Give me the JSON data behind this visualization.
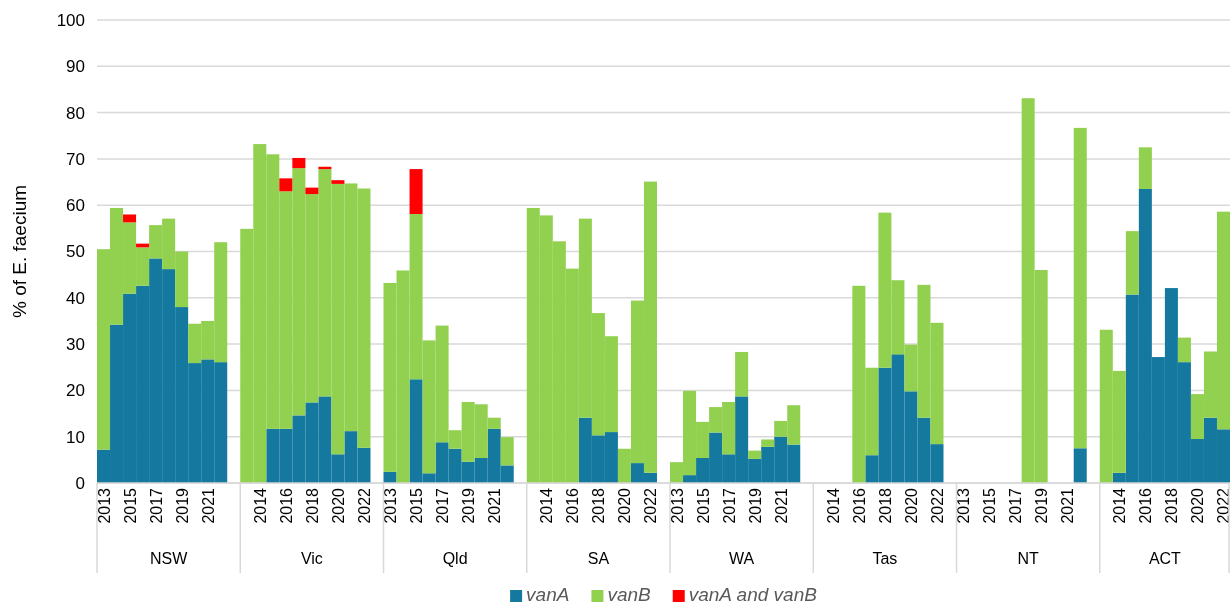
{
  "chart_data": {
    "type": "bar",
    "stacked": true,
    "ylabel": "% of E. faecium",
    "categories": [
      "2013",
      null,
      "2015",
      null,
      "2017",
      null,
      "2019",
      null,
      "2021",
      null,
      null,
      null,
      "2014",
      null,
      "2016",
      null,
      "2018",
      null,
      "2020",
      null,
      "2022",
      null,
      "2013",
      null,
      "2015",
      null,
      "2017",
      null,
      "2019",
      null,
      "2021",
      null,
      null,
      null,
      "2014",
      null,
      "2016",
      null,
      "2018",
      null,
      "2020",
      null,
      "2022",
      null,
      "2013",
      null,
      "2015",
      null,
      "2017",
      null,
      "2019",
      null,
      "2021",
      null,
      null,
      null,
      "2014",
      null,
      "2016",
      null,
      "2018",
      null,
      "2020",
      null,
      "2022",
      null,
      "2013",
      null,
      "2015",
      null,
      "2017",
      null,
      "2019",
      null,
      "2021",
      null,
      null,
      null,
      "2014",
      null,
      "2016",
      null,
      "2018",
      null,
      "2020",
      null,
      "2022"
    ],
    "annotations": [
      "NSW",
      "Vic",
      "Qld",
      "SA",
      "WA",
      "Tas",
      "NT",
      "ACT"
    ],
    "series": [
      {
        "name": "vanA",
        "color": "#15799f",
        "values": [
          7.2,
          34.2,
          40.9,
          42.6,
          48.5,
          46.2,
          38.0,
          25.9,
          26.7,
          26.1,
          null,
          0,
          0,
          11.7,
          11.7,
          14.6,
          17.4,
          18.7,
          6.2,
          11.2,
          7.6,
          null,
          2.4,
          0,
          22.4,
          2.1,
          8.8,
          7.4,
          4.6,
          5.4,
          11.7,
          3.8,
          null,
          0,
          0,
          0,
          0,
          14.1,
          10.3,
          11.0,
          0,
          4.3,
          2.2,
          null,
          0,
          1.7,
          5.4,
          10.9,
          6.2,
          18.7,
          5.2,
          7.8,
          10.0,
          8.3,
          null,
          null,
          null,
          null,
          0,
          6.0,
          24.9,
          27.8,
          19.8,
          14.1,
          8.4,
          null,
          null,
          null,
          null,
          null,
          null,
          0,
          0,
          null,
          null,
          7.5,
          null,
          0,
          2.2,
          40.7,
          63.5,
          27.2,
          42.1,
          26.1,
          9.5,
          14.1,
          11.6
        ]
      },
      {
        "name": "vanB",
        "color": "#92d050",
        "values": [
          43.3,
          25.2,
          15.4,
          8.3,
          7.2,
          10.9,
          12.0,
          8.5,
          8.3,
          25.9,
          null,
          54.9,
          73.2,
          59.3,
          51.3,
          53.4,
          45.0,
          49.1,
          58.4,
          53.5,
          56.0,
          null,
          40.8,
          45.9,
          35.7,
          28.7,
          25.2,
          4.0,
          12.9,
          11.6,
          2.4,
          6.1,
          null,
          59.4,
          57.8,
          52.2,
          46.3,
          43.0,
          26.4,
          20.7,
          7.4,
          35.1,
          62.9,
          null,
          4.5,
          18.2,
          7.8,
          5.5,
          11.3,
          9.6,
          1.8,
          1.6,
          3.4,
          8.5,
          null,
          null,
          null,
          null,
          42.6,
          18.9,
          33.5,
          16.0,
          10.1,
          28.7,
          26.2,
          null,
          null,
          null,
          null,
          null,
          null,
          83.1,
          46.0,
          null,
          null,
          69.2,
          null,
          33.1,
          22.0,
          13.7,
          9.0,
          0,
          0,
          5.3,
          9.7,
          14.3,
          47.0
        ]
      },
      {
        "name": "vanA and vanB",
        "color": "#ff0000",
        "values": [
          0,
          0,
          1.7,
          0.8,
          0,
          0,
          0,
          0,
          0,
          0,
          null,
          0,
          0,
          0,
          2.8,
          2.2,
          1.4,
          0.5,
          0.8,
          0,
          0,
          null,
          0,
          0,
          9.7,
          0,
          0,
          0,
          0,
          0,
          0,
          0,
          null,
          0,
          0,
          0,
          0,
          0,
          0,
          0,
          0,
          0,
          0,
          null,
          0,
          0,
          0,
          0,
          0,
          0,
          0,
          0,
          0,
          0,
          null,
          null,
          null,
          null,
          0,
          0,
          0,
          0,
          0,
          0,
          0,
          null,
          null,
          null,
          null,
          null,
          null,
          0,
          0,
          null,
          null,
          0,
          null,
          0,
          0,
          0,
          0,
          0,
          0,
          0,
          0,
          0,
          0
        ]
      }
    ],
    "ylim": [
      0,
      100
    ],
    "yticks": [
      0,
      10,
      20,
      30,
      40,
      50,
      60,
      70,
      80,
      90,
      100
    ],
    "grid": "y",
    "legend": "bottom"
  }
}
